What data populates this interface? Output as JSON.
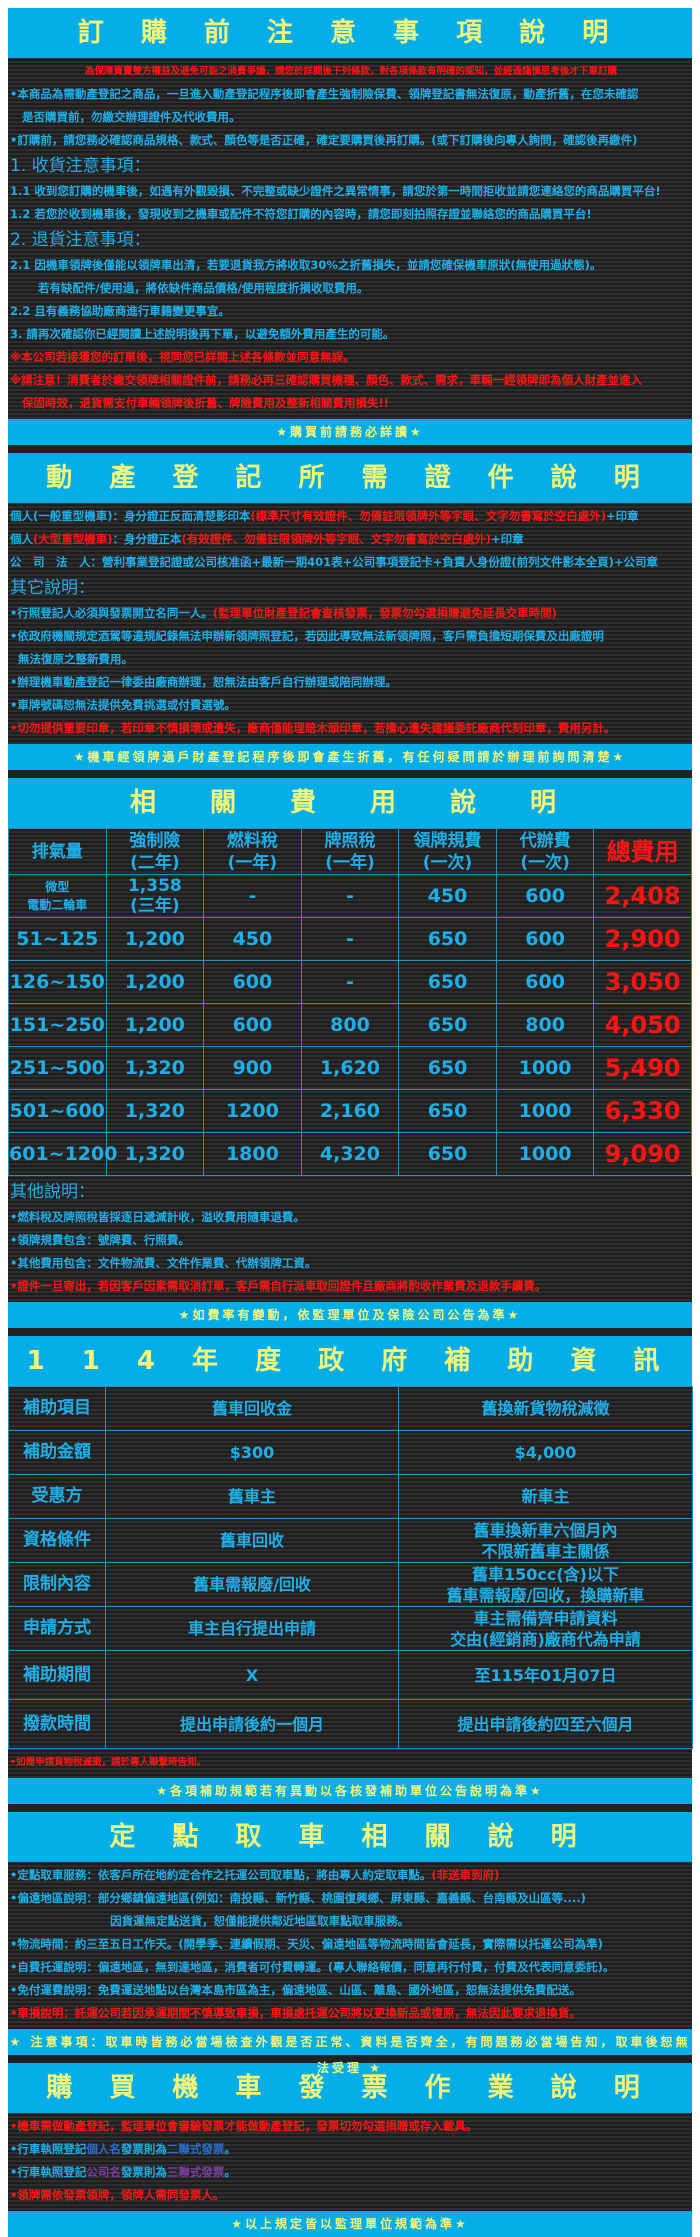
{
  "colors": {
    "blue_bar": "#06aee9",
    "title_yellow": "#f3f57a",
    "cyan": "#1eaee8",
    "red": "#ff1414",
    "purple": "#7b3fa0",
    "mid_blue": "#2a6fd0"
  },
  "sections": [
    {
      "title": "訂 購 前 注 意 事 項 說 明",
      "lines": [
        {
          "cls": "center small",
          "segs": [
            [
              "為保障買賣雙方權益及避免可能之消費爭議，請您於詳閱後下列條款，對各項條款有明確的認知，並經過謹慎思考後才下單訂購",
              "red"
            ]
          ]
        },
        {
          "segs": [
            [
              "•本商品為需動產登記之商品，一旦進入動產登記程序後即會產生強制險保費、領牌登記書無法復原，動產折舊，在您未確認",
              "cyan"
            ]
          ]
        },
        {
          "segs": [
            [
              "   是否購買前，勿繳交辦理證件及代收費用。",
              "cyan"
            ]
          ]
        },
        {
          "segs": [
            [
              "•訂購前，請您務必確認商品規格、款式、顏色等是否正確，確定要購買後再訂購。(或下訂購後向專人詢問，確認後再繳件)",
              "cyan"
            ]
          ]
        },
        {
          "cls": "h",
          "segs": [
            [
              "1. 收貨注意事項：",
              "cyan"
            ]
          ]
        },
        {
          "segs": [
            [
              "1.1 收到您訂購的機車後，如遇有外觀毀損、不完整或缺少證件之異常情事，請您於第一時間拒收並請您連絡您的商品購買平台!",
              "cyan"
            ]
          ]
        },
        {
          "segs": [
            [
              "1.2 若您於收到機車後，發現收到之機車或配件不符您訂購的內容時，請您即刻拍照存證並聯絡您的商品購買平台!",
              "cyan"
            ]
          ]
        },
        {
          "cls": "h",
          "segs": [
            [
              "2. 退貨注意事項：",
              "cyan"
            ]
          ]
        },
        {
          "segs": [
            [
              "2.1 因機車領牌後僅能以領牌車出清，若要退貨我方將收取30%之折舊損失，並請您確保機車原狀(無使用過狀態)。",
              "cyan"
            ]
          ]
        },
        {
          "segs": [
            [
              "       若有缺配件/使用過，將依缺件商品價格/使用程度折損收取費用。",
              "cyan"
            ]
          ]
        },
        {
          "segs": [
            [
              "2.2 且有義務協助廠商進行車籍變更事宜。",
              "cyan"
            ]
          ]
        },
        {
          "segs": [
            [
              "3. 請再次確認你已經閱讀上述說明後再下單，以避免額外費用產生的可能。",
              "cyan"
            ]
          ]
        },
        {
          "segs": [
            [
              "※本公司若接獲您的訂單後，視同您已詳閱上述各條款並同意無誤。",
              "red"
            ]
          ]
        },
        {
          "segs": [
            [
              "※請注意！消費者於繳交領牌相關證件前，請務必再三確認購買機種、顏色、款式、需求，車輛一經領牌即為個人財產並進入",
              "red"
            ]
          ]
        },
        {
          "segs": [
            [
              "   保固時效，退貨需支付車輛領牌後折舊、牌險費用及整新相關費用損失!!",
              "red"
            ]
          ]
        }
      ],
      "footer": "★購買前請務必詳讀★"
    },
    {
      "title": "動 產 登 記 所 需 證 件 說 明",
      "lines": [
        {
          "segs": [
            [
              "個人(一般重型機車)：身分證正反面清楚影印本",
              "cyan"
            ],
            [
              "(標準尺寸有效證件、勿備註限領牌外等字眼、文字勿書寫於空白處外)",
              "red"
            ],
            [
              "+印章",
              "cyan"
            ]
          ]
        },
        {
          "segs": [
            [
              "個人",
              "cyan"
            ],
            [
              "(大型重型機車)",
              "red"
            ],
            [
              "：身分證正本",
              "cyan"
            ],
            [
              "(有效證件、勿備註限領牌外等字眼、文字勿書寫於空白處外)",
              "red"
            ],
            [
              "+印章",
              "cyan"
            ]
          ]
        },
        {
          "segs": [
            [
              "公　司　法　人：營利事業登記證或公司核准函+最新一期401表+公司事項登記卡+負責人身份證(前列文件影本全頁)+公司章",
              "cyan"
            ]
          ]
        },
        {
          "cls": "h",
          "segs": [
            [
              "其它說明：",
              "cyan"
            ]
          ]
        },
        {
          "segs": [
            [
              "•行照登記人必須與發票開立名同一人。",
              "cyan"
            ],
            [
              "(監理單位財產登記會查核發票，發票勿勾選捐贈避免延長交車時間)",
              "red"
            ]
          ]
        },
        {
          "segs": [
            [
              "•依政府機關規定酒駕等違規紀錄無法申辦新領牌照登記，若因此導致無法新領牌照，客戶需負擔短期保費及出廠證明",
              "cyan"
            ]
          ]
        },
        {
          "segs": [
            [
              "  無法復原之整新費用。",
              "cyan"
            ]
          ]
        },
        {
          "segs": [
            [
              "•辦理機車動產登記一律委由廠商辦理，恕無法由客戶自行辦理或陪同辦理。",
              "cyan"
            ]
          ]
        },
        {
          "segs": [
            [
              "•車牌號碼恕無法提供免費挑選或付費選號。",
              "cyan"
            ]
          ]
        },
        {
          "segs": [
            [
              "•切勿提供重要印章，若印章不慎損壞或遺失，廠商僅能理賠木頭印章，若擔心遺失建議委託廠商代刻印章，費用另計。",
              "red"
            ]
          ]
        }
      ],
      "footer": "★機車經領牌過戶財產登記程序後即會產生折舊，有任何疑問請於辦理前詢問清楚★"
    },
    {
      "title": "相　關　費　用　說　明",
      "fee_table": {
        "headers": [
          {
            "label": "排氣量",
            "sub": ""
          },
          {
            "label": "強制險",
            "sub": "(二年)"
          },
          {
            "label": "燃料稅",
            "sub": "(一年)"
          },
          {
            "label": "牌照稅",
            "sub": "(一年)"
          },
          {
            "label": "領牌規費",
            "sub": "(一次)"
          },
          {
            "label": "代辦費",
            "sub": "(一次)"
          },
          {
            "label": "總費用",
            "sub": ""
          }
        ],
        "rows": [
          {
            "cc": "微型\n電動二輪車",
            "insurance": "1,358\n(三年)",
            "fuel_tax": "-",
            "license_tax": "-",
            "plate_fee": "450",
            "agent_fee": "600",
            "total": "2,408"
          },
          {
            "cc": "51~125",
            "insurance": "1,200",
            "fuel_tax": "450",
            "license_tax": "-",
            "plate_fee": "650",
            "agent_fee": "600",
            "total": "2,900"
          },
          {
            "cc": "126~150",
            "insurance": "1,200",
            "fuel_tax": "600",
            "license_tax": "-",
            "plate_fee": "650",
            "agent_fee": "600",
            "total": "3,050"
          },
          {
            "cc": "151~250",
            "insurance": "1,200",
            "fuel_tax": "600",
            "license_tax": "800",
            "plate_fee": "650",
            "agent_fee": "800",
            "total": "4,050"
          },
          {
            "cc": "251~500",
            "insurance": "1,320",
            "fuel_tax": "900",
            "license_tax": "1,620",
            "plate_fee": "650",
            "agent_fee": "1000",
            "total": "5,490"
          },
          {
            "cc": "501~600",
            "insurance": "1,320",
            "fuel_tax": "1200",
            "license_tax": "2,160",
            "plate_fee": "650",
            "agent_fee": "1000",
            "total": "6,330"
          },
          {
            "cc": "601~1200",
            "insurance": "1,320",
            "fuel_tax": "1800",
            "license_tax": "4,320",
            "plate_fee": "650",
            "agent_fee": "1000",
            "total": "9,090"
          }
        ]
      },
      "lines": [
        {
          "cls": "h",
          "segs": [
            [
              "其他說明：",
              "cyan"
            ]
          ]
        },
        {
          "segs": [
            [
              "•燃料稅及牌照稅皆採逐日遞減計收，溢收費用隨車退費。",
              "cyan"
            ]
          ]
        },
        {
          "segs": [
            [
              "•領牌規費包含：號牌費、行照費。",
              "cyan"
            ]
          ]
        },
        {
          "segs": [
            [
              "•其他費用包含：文件物流費、文件作業費、代辦領牌工資。",
              "cyan"
            ]
          ]
        },
        {
          "segs": [
            [
              "•證件一旦寄出，若因客戶因素需取消訂單，客戶需自行派車取回證件且廠商將酌收作業費及退款手續費。",
              "red"
            ]
          ]
        }
      ],
      "footer": "★如費率有變動，依監理單位及保險公司公告為準★"
    },
    {
      "title": "1 1 4 年 度 政 府 補 助 資 訊",
      "subsidy_table": [
        {
          "label": "補助項目",
          "a": "舊車回收金",
          "b": "舊換新貨物稅減徵"
        },
        {
          "label": "補助金額",
          "a": "$300",
          "b": "$4,000"
        },
        {
          "label": "受惠方",
          "a": "舊車主",
          "b": "新車主"
        },
        {
          "label": "資格條件",
          "a": "舊車回收",
          "b": "舊車換新車六個月內\n不限新舊車主關係"
        },
        {
          "label": "限制內容",
          "a": "舊車需報廢/回收",
          "b": "舊車150cc(含)以下\n舊車需報廢/回收，換購新車"
        },
        {
          "label": "申請方式",
          "a": "車主自行提出申請",
          "b": "車主需備齊申請資料\n交由(經銷商)廠商代為申請"
        },
        {
          "label": "補助期間",
          "a": "X",
          "b": "至115年01月07日"
        },
        {
          "label": "撥款時間",
          "a": "提出申請後約一個月",
          "b": "提出申請後約四至六個月"
        }
      ],
      "lines": [
        {
          "cls": "small",
          "segs": [
            [
              "•如需申請貨物稅減徵，請於專人聯繫時告知。",
              "red"
            ]
          ]
        }
      ],
      "footer": "★各項補助規範若有異動以各核發補助單位公告說明為準★"
    },
    {
      "title": "定 點 取 車 相 關 說 明",
      "lines": [
        {
          "segs": [
            [
              "•定點取車服務：依客戶所在地約定合作之托運公司取車點，將由專人約定取車點。",
              "cyan"
            ],
            [
              "(非送車到府)",
              "red"
            ]
          ]
        },
        {
          "segs": [
            [
              "•偏遠地區說明：部分鄉鎮偏遠地區(例如：南投縣、新竹縣、桃園復興鄉、屏東縣、嘉義縣、台南縣及山區等....)",
              "cyan"
            ]
          ]
        },
        {
          "segs": [
            [
              "                         因貨運無定點送貨，恕僅能提供鄰近地區取車點取車服務。",
              "cyan"
            ]
          ]
        },
        {
          "segs": [
            [
              "•物流時間：約三至五日工作天。(開學季、連續假期、天災、偏遠地區等物流時間皆會延長，實際需以托運公司為準)",
              "cyan"
            ]
          ]
        },
        {
          "segs": [
            [
              "•自費托運說明：偏遠地區，無到達地區，消費者可付費轉運。(專人聯絡報價，同意再行付費，付費及代表同意委託)。",
              "cyan"
            ]
          ]
        },
        {
          "segs": [
            [
              "•免付運費說明：免費運送地點以台灣本島市區為主，偏遠地區、山區、離島、國外地區，恕無法提供免費配送。",
              "cyan"
            ]
          ]
        },
        {
          "segs": [
            [
              "•車損說明：託運公司若因承運期間不慎導致車損，車損處托運公司將以更換新品或復原，無法因此要求退換貨。",
              "red"
            ]
          ]
        }
      ],
      "footer": "★ 注意事項：取車時皆務必當場檢查外觀是否正常、資料是否齊全，有問題務必當場告知，取車後恕無法受理 ★"
    },
    {
      "title": "購 買 機 車 發 票 作 業 說 明",
      "lines": [
        {
          "segs": [
            [
              "•機車需做動產登記，監理單位會審驗發票才能做動產登記，發票切勿勾選捐贈或存入載具。",
              "red"
            ]
          ]
        },
        {
          "segs": [
            [
              "•行車執照登記",
              "cyan"
            ],
            [
              "個人名",
              "mid_blue"
            ],
            [
              "發票則為",
              "cyan"
            ],
            [
              "二聯式發票",
              "mid_blue"
            ],
            [
              "。",
              "cyan"
            ]
          ]
        },
        {
          "segs": [
            [
              "•行車執照登記",
              "cyan"
            ],
            [
              "公司名",
              "purple"
            ],
            [
              "發票則為",
              "cyan"
            ],
            [
              "三聯式發票",
              "purple"
            ],
            [
              "。",
              "cyan"
            ]
          ]
        },
        {
          "segs": [
            [
              "•領牌需依發票領牌，領牌人需同發票人。",
              "red"
            ]
          ]
        }
      ],
      "footer": "★以上規定皆以監理單位規範為準★"
    }
  ]
}
